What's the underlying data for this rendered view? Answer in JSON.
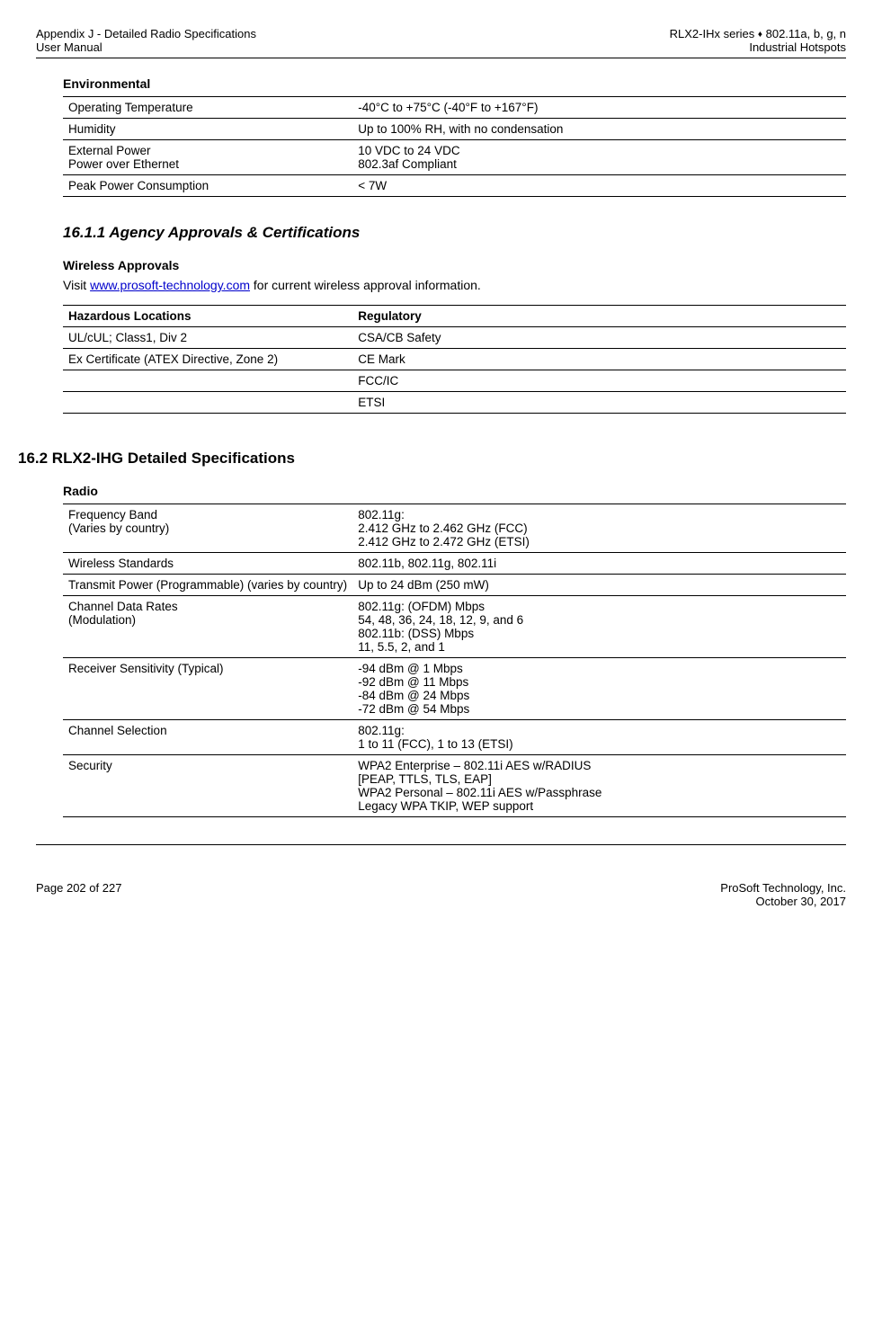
{
  "header": {
    "left1": "Appendix J - Detailed Radio Specifications",
    "left2": "User Manual",
    "right1a": "RLX2-IHx series ",
    "right1b": " 802.11a, b, g, n",
    "right2": "Industrial Hotspots"
  },
  "env": {
    "title": "Environmental",
    "rows": [
      {
        "k": "Operating Temperature",
        "v": "-40°C to +75°C (-40°F to +167°F)"
      },
      {
        "k": "Humidity",
        "v": "Up to 100% RH, with no condensation"
      },
      {
        "k": "External Power\nPower over Ethernet",
        "v": "10 VDC to 24 VDC\n802.3af Compliant"
      },
      {
        "k": "Peak Power Consumption",
        "v": "< 7W"
      }
    ]
  },
  "agency": {
    "heading": "16.1.1 Agency Approvals & Certifications",
    "subheading": "Wireless Approvals",
    "text_pre": "Visit ",
    "link": "www.prosoft-technology.com",
    "text_post": " for current wireless approval information.",
    "table": {
      "h1": "Hazardous Locations",
      "h2": "Regulatory",
      "rows": [
        {
          "k": "UL/cUL; Class1, Div 2",
          "v": "CSA/CB Safety"
        },
        {
          "k": "Ex Certificate (ATEX Directive, Zone 2)",
          "v": "CE Mark"
        },
        {
          "k": "",
          "v": "FCC/IC"
        },
        {
          "k": "",
          "v": "ETSI"
        }
      ]
    }
  },
  "ihg": {
    "heading": "16.2    RLX2-IHG Detailed Specifications",
    "radio_title": "Radio",
    "rows": [
      {
        "k": "Frequency Band\n(Varies by country)",
        "v": "802.11g:\n2.412 GHz to 2.462 GHz (FCC)\n2.412 GHz to 2.472 GHz (ETSI)"
      },
      {
        "k": "Wireless Standards",
        "v": "802.11b, 802.11g, 802.11i"
      },
      {
        "k": "Transmit Power (Programmable) (varies by country)",
        "v": "Up to 24 dBm (250 mW)"
      },
      {
        "k": "Channel Data Rates\n(Modulation)",
        "v": "802.11g: (OFDM) Mbps\n54, 48, 36, 24, 18, 12, 9, and 6\n802.11b: (DSS) Mbps\n11, 5.5, 2, and 1"
      },
      {
        "k": "Receiver Sensitivity (Typical)",
        "v": "-94 dBm @ 1 Mbps\n-92 dBm @ 11 Mbps\n-84 dBm @ 24 Mbps\n-72 dBm @ 54 Mbps"
      },
      {
        "k": "Channel Selection",
        "v": "802.11g:\n1 to 11 (FCC), 1 to 13 (ETSI)"
      },
      {
        "k": "Security",
        "v": "WPA2 Enterprise – 802.11i AES w/RADIUS\n[PEAP, TTLS, TLS, EAP]\nWPA2 Personal – 802.11i AES w/Passphrase\nLegacy WPA TKIP, WEP support"
      }
    ]
  },
  "footer": {
    "left": "Page 202 of 227",
    "right1": "ProSoft Technology, Inc.",
    "right2": "October 30, 2017"
  }
}
